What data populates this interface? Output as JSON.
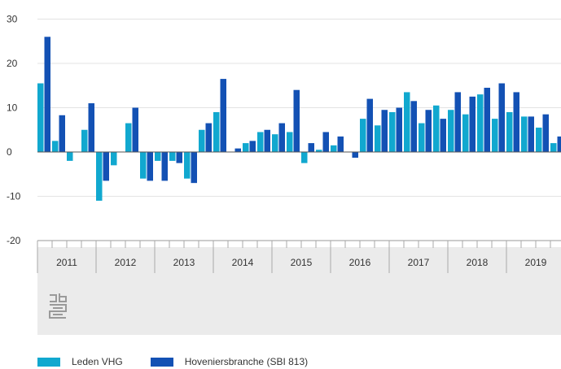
{
  "chart_data": {
    "type": "bar",
    "yticks": [
      30,
      20,
      10,
      0,
      -10,
      -20
    ],
    "ylim": [
      -20,
      30
    ],
    "years": [
      "2011",
      "2012",
      "2013",
      "2014",
      "2015",
      "2016",
      "2017",
      "2018",
      "2019"
    ],
    "quarters_per_year": 4,
    "series": [
      {
        "name": "Leden VHG",
        "color": "#11a8cf",
        "values": [
          15.5,
          2.5,
          -2,
          5,
          -11,
          -3,
          6.5,
          -6,
          -2,
          -2,
          -6,
          5,
          9,
          0,
          2,
          4.5,
          4,
          4.5,
          -2.5,
          0.5,
          1.5,
          0,
          7.5,
          6,
          9,
          13.5,
          6.5,
          10.5,
          9.5,
          8.5,
          13,
          7.5,
          9,
          8,
          5.5,
          2
        ]
      },
      {
        "name": "Hoveniersbranche (SBI 813)",
        "color": "#1351b4",
        "values": [
          26,
          8.3,
          0,
          11,
          -6.5,
          0,
          10,
          -6.5,
          -6.5,
          -2.5,
          -7,
          6.5,
          16.5,
          0.8,
          2.5,
          5,
          6.5,
          14,
          2,
          4.5,
          3.5,
          -1.3,
          12,
          9.5,
          10,
          11.5,
          9.5,
          7.5,
          13.5,
          12.5,
          14.5,
          15.5,
          13.5,
          8,
          8.5,
          3.5
        ]
      }
    ]
  },
  "legend": {
    "item1": "Leden VHG",
    "item2": "Hoveniersbranche (SBI 813)"
  },
  "logo": {
    "text": "cbs",
    "icon": "cbs-logo-icon"
  }
}
